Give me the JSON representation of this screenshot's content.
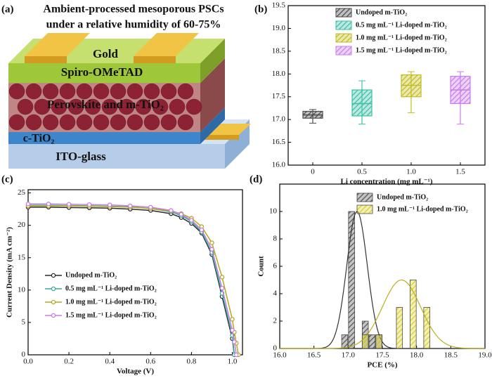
{
  "panel_labels": [
    "(a)",
    "(b)",
    "(c)",
    "(d)"
  ],
  "diagram": {
    "title_lines": [
      "Ambient-processed mesoporous PSCs",
      "under a relative humidity of 60-75%"
    ],
    "layers": [
      "Gold",
      "Spiro-OMeTAD",
      "Perovskite and m-TiO₂",
      "c-TiO₂",
      "ITO-glass"
    ]
  },
  "chart_data": [
    {
      "type": "box",
      "xlabel": "Li concentration (mg mL⁻¹)",
      "categories": [
        "0",
        "0.5",
        "1.0",
        "1.5"
      ],
      "ylim": [
        16,
        19.5
      ],
      "yticks": [
        {
          "value": 16,
          "label": "16.0"
        },
        16.5,
        {
          "value": 17,
          "label": "17.0"
        },
        17.5,
        {
          "value": 18,
          "label": "18.0"
        },
        18.5,
        {
          "value": 19,
          "label": "19.0"
        },
        19.5
      ],
      "series": [
        {
          "name": "Undoped m-TiO₂",
          "color": "#4a4a4a",
          "min": 16.92,
          "q1": 17.03,
          "median": 17.1,
          "q3": 17.18,
          "max": 17.22
        },
        {
          "name": "0.5 mg mL⁻¹ Li-doped m-TiO₂",
          "color": "#3cbfa6",
          "min": 16.9,
          "q1": 17.08,
          "median": 17.35,
          "q3": 17.65,
          "max": 17.85
        },
        {
          "name": "1.0 mg mL⁻¹ Li-doped m-TiO₂",
          "color": "#c2bc1e",
          "min": 17.15,
          "q1": 17.5,
          "median": 17.75,
          "q3": 17.98,
          "max": 18.05
        },
        {
          "name": "1.5 mg mL⁻¹ Li-doped m-TiO₂",
          "color": "#c97fe8",
          "min": 16.9,
          "q1": 17.35,
          "median": 17.65,
          "q3": 17.95,
          "max": 18.05
        }
      ]
    },
    {
      "type": "line",
      "xlabel": "Voltage (V)",
      "ylabel": "Current Density (mA cm⁻²)",
      "xlim": [
        0,
        1.05
      ],
      "ylim": [
        0,
        25.5
      ],
      "xticks": [
        {
          "value": 0,
          "label": "0.0"
        },
        0.2,
        0.4,
        0.6,
        0.8,
        {
          "value": 1,
          "label": "1.0"
        }
      ],
      "yticks": [
        0,
        5,
        10,
        15,
        20,
        25
      ],
      "x": [
        0,
        0.1,
        0.2,
        0.3,
        0.4,
        0.5,
        0.6,
        0.7,
        0.75,
        0.8,
        0.85,
        0.9,
        0.95,
        1.0,
        1.01,
        1.02,
        1.03
      ],
      "series": [
        {
          "name": "Undoped m-TiO₂",
          "color": "#2b2b2b",
          "values": [
            22.8,
            22.8,
            22.75,
            22.7,
            22.65,
            22.5,
            22.3,
            21.8,
            21.2,
            20.3,
            18.8,
            15.5,
            9,
            2.5,
            0,
            null,
            null
          ]
        },
        {
          "name": "0.5 mg mL⁻¹ Li-doped m-TiO₂",
          "color": "#3aa89a",
          "values": [
            23.1,
            23.1,
            23.05,
            23.0,
            22.95,
            22.85,
            22.6,
            22.1,
            21.5,
            20.6,
            19.0,
            15.8,
            9.5,
            3,
            0,
            null,
            null
          ]
        },
        {
          "name": "1.0 mg mL⁻¹ Li-doped m-TiO₂",
          "color": "#b5a820",
          "values": [
            23.0,
            23.0,
            23.0,
            22.95,
            22.9,
            22.8,
            22.6,
            22.2,
            21.8,
            21.1,
            19.8,
            17.3,
            12,
            5.5,
            3.5,
            1.8,
            0
          ]
        },
        {
          "name": "1.5 mg mL⁻¹ Li-doped m-TiO₂",
          "color": "#c77de6",
          "values": [
            23.3,
            23.3,
            23.25,
            23.2,
            23.15,
            23.0,
            22.8,
            22.3,
            21.7,
            20.8,
            19.3,
            16.3,
            10.3,
            3.8,
            2,
            0,
            null
          ]
        }
      ]
    },
    {
      "type": "histogram",
      "xlabel": "PCE (%)",
      "ylabel": "Count",
      "xlim": [
        16,
        19
      ],
      "ylim": [
        0,
        12
      ],
      "xticks": [
        {
          "value": 16,
          "label": "16.0"
        },
        16.5,
        {
          "value": 17,
          "label": "17.0"
        },
        17.5,
        {
          "value": 18,
          "label": "18.0"
        },
        18.5,
        {
          "value": 19,
          "label": "19.0"
        }
      ],
      "yticks": [
        0,
        2,
        4,
        6,
        8,
        10
      ],
      "bins": [
        16.9,
        17.0,
        17.1,
        17.2,
        17.3,
        17.4,
        17.5,
        17.6,
        17.7,
        17.8,
        17.9,
        18.0,
        18.1,
        18.2
      ],
      "series": [
        {
          "name": "Undoped m-TiO₂",
          "color": "#555555",
          "values": [
            1,
            10,
            0,
            2,
            1,
            1,
            0,
            0,
            0,
            0,
            0,
            0,
            0
          ],
          "fit": {
            "mean": 17.13,
            "sd": 0.15,
            "peak": 10
          }
        },
        {
          "name": "1.0 mg mL⁻¹ Li-doped m-TiO₂",
          "color": "#d8d030",
          "values": [
            0,
            0,
            0,
            1,
            0,
            1,
            0,
            0,
            3,
            0,
            5,
            0,
            3
          ],
          "fit": {
            "mean": 17.78,
            "sd": 0.28,
            "peak": 5
          }
        }
      ]
    }
  ]
}
